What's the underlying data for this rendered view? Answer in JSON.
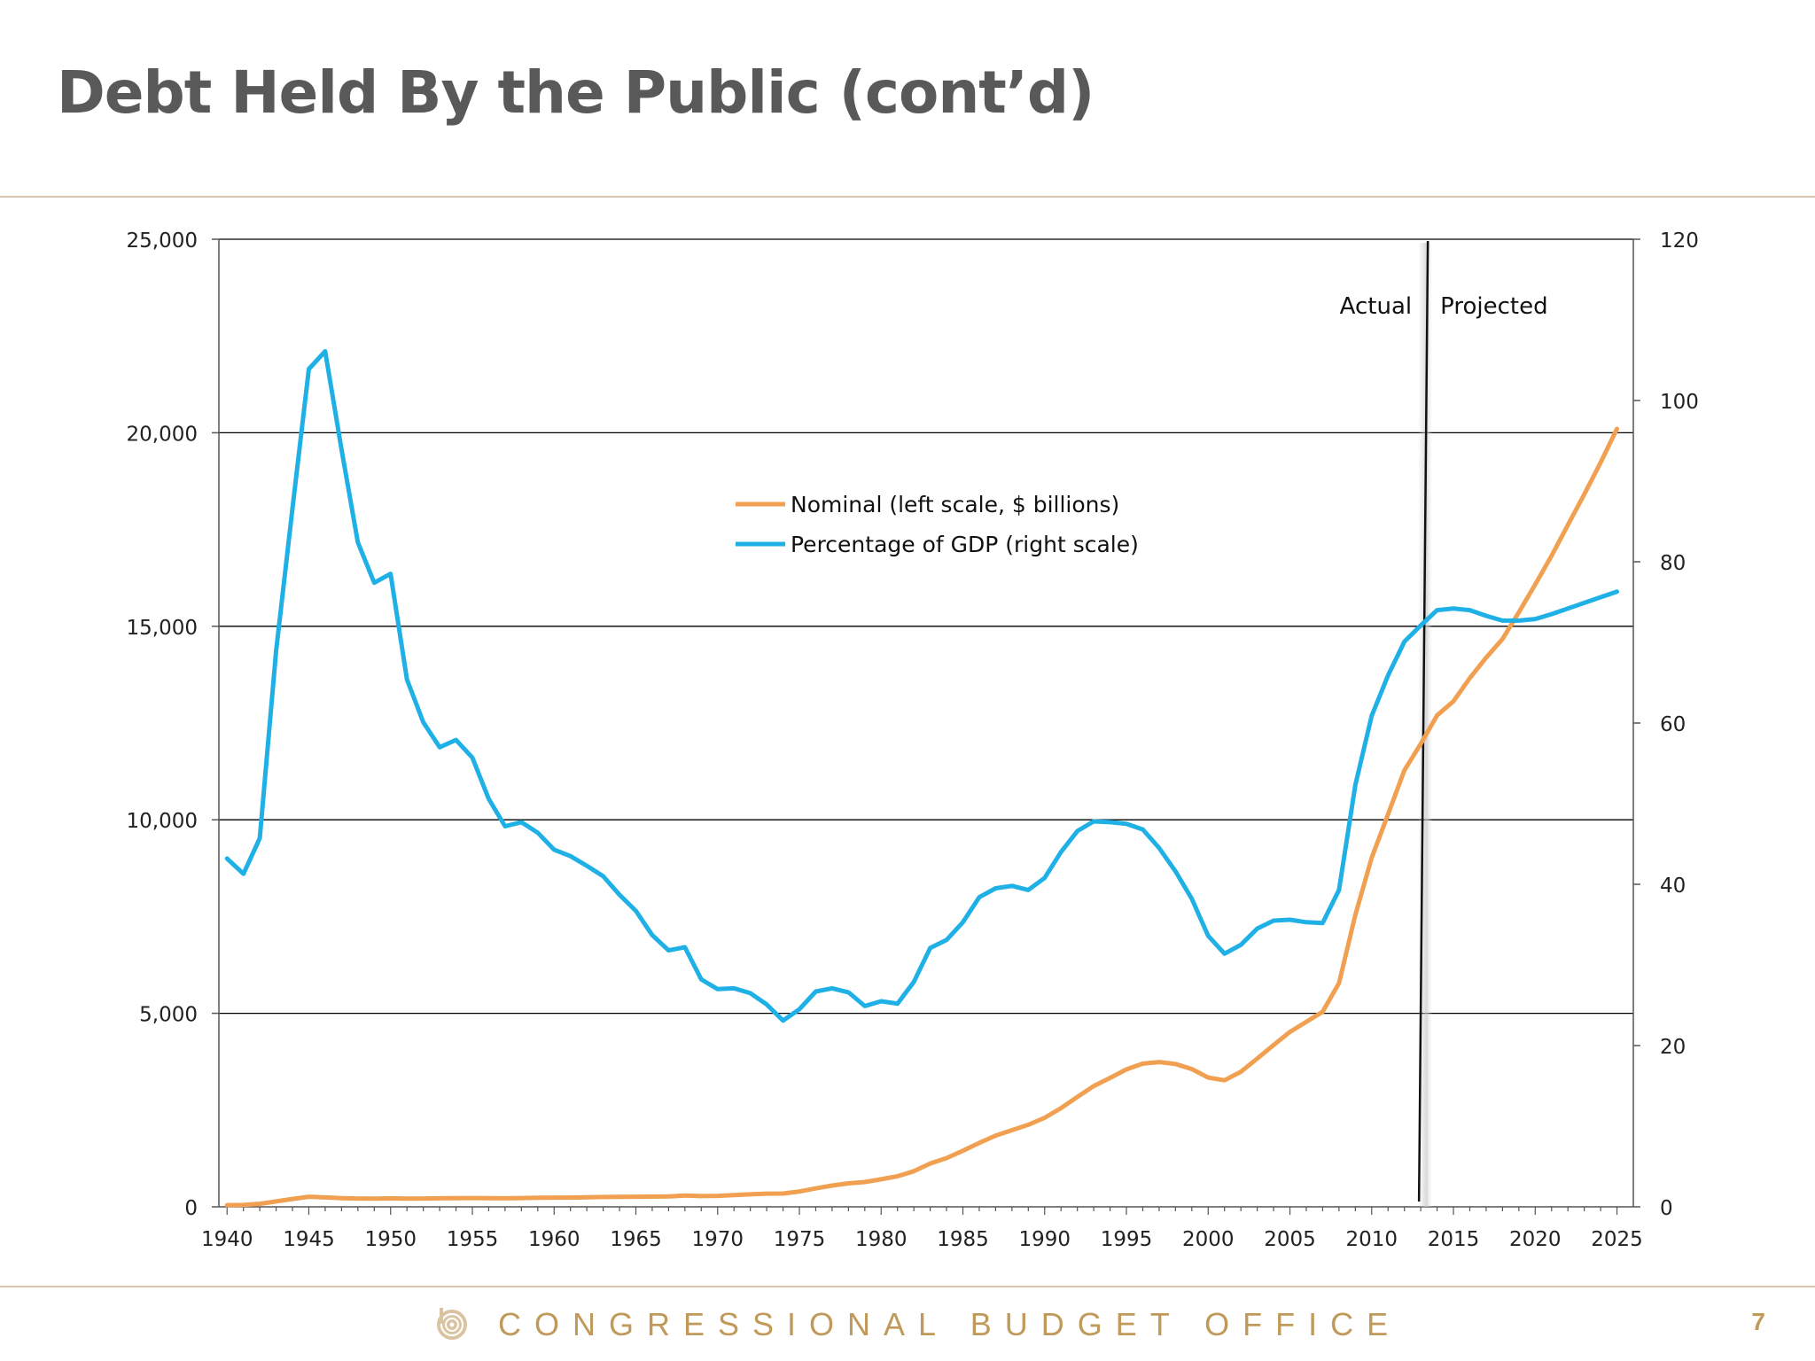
{
  "slide": {
    "title": "Debt Held By the Public (cont’d)",
    "footer_text": "CONGRESSIONAL BUDGET OFFICE",
    "page_number": "7",
    "footer_logo_icon": "cbo-logo-icon"
  },
  "colors": {
    "nominal": "#f0a050",
    "percent": "#1fb0e6",
    "title": "#595959",
    "footer": "#c09a5b",
    "rule": "#d8c7ad"
  },
  "chart_data": {
    "type": "line",
    "title": "",
    "xlabel": "",
    "ylabel": "",
    "xlim": [
      1939.5,
      2026
    ],
    "x_ticks": [
      1940,
      1945,
      1950,
      1955,
      1960,
      1965,
      1970,
      1975,
      1980,
      1985,
      1990,
      1995,
      2000,
      2005,
      2010,
      2015,
      2020,
      2025
    ],
    "x_tick_labels": [
      "1940",
      "1945",
      "1950",
      "1955",
      "1960",
      "1965",
      "1970",
      "1975",
      "1980",
      "1985",
      "1990",
      "1995",
      "2000",
      "2005",
      "2010",
      "2015",
      "2020",
      "2025"
    ],
    "left_axis": {
      "ylim": [
        0,
        25000
      ],
      "ticks": [
        0,
        5000,
        10000,
        15000,
        20000,
        25000
      ],
      "tick_labels": [
        "0",
        "5,000",
        "10,000",
        "15,000",
        "20,000",
        "25,000"
      ]
    },
    "right_axis": {
      "ylim": [
        0,
        120
      ],
      "ticks": [
        0,
        20,
        40,
        60,
        80,
        100,
        120
      ],
      "tick_labels": [
        "0",
        "20",
        "40",
        "60",
        "80",
        "100",
        "120"
      ]
    },
    "grid": "horizontal",
    "legend": {
      "placement": "upper-center",
      "entries": [
        "Nominal (left scale, $ billions)",
        "Percentage of GDP (right scale)"
      ]
    },
    "divider": {
      "year": 2013,
      "left_label": "Actual",
      "right_label": "Projected"
    },
    "series": [
      {
        "name": "Nominal (left scale, $ billions)",
        "axis": "left",
        "x": [
          1940,
          1941,
          1942,
          1943,
          1944,
          1945,
          1946,
          1947,
          1948,
          1949,
          1950,
          1951,
          1952,
          1953,
          1954,
          1955,
          1956,
          1957,
          1958,
          1959,
          1960,
          1961,
          1962,
          1963,
          1964,
          1965,
          1966,
          1967,
          1968,
          1969,
          1970,
          1971,
          1972,
          1973,
          1974,
          1975,
          1976,
          1977,
          1978,
          1979,
          1980,
          1981,
          1982,
          1983,
          1984,
          1985,
          1986,
          1987,
          1988,
          1989,
          1990,
          1991,
          1992,
          1993,
          1994,
          1995,
          1996,
          1997,
          1998,
          1999,
          2000,
          2001,
          2002,
          2003,
          2004,
          2005,
          2006,
          2007,
          2008,
          2009,
          2010,
          2011,
          2012,
          2013,
          2014,
          2015,
          2016,
          2017,
          2018,
          2019,
          2020,
          2021,
          2022,
          2023,
          2024,
          2025
        ],
        "values": [
          43,
          49,
          77,
          139,
          204,
          260,
          242,
          224,
          216,
          214,
          219,
          214,
          215,
          219,
          224,
          227,
          222,
          219,
          226,
          235,
          237,
          238,
          248,
          254,
          257,
          261,
          264,
          267,
          290,
          278,
          283,
          303,
          322,
          341,
          344,
          395,
          477,
          549,
          607,
          640,
          712,
          790,
          920,
          1120,
          1260,
          1450,
          1650,
          1840,
          1980,
          2120,
          2300,
          2550,
          2840,
          3120,
          3330,
          3550,
          3700,
          3740,
          3690,
          3560,
          3340,
          3270,
          3490,
          3830,
          4180,
          4520,
          4780,
          5040,
          5780,
          7540,
          9020,
          10140,
          11280,
          11960,
          12700,
          13060,
          13660,
          14190,
          14670,
          15360,
          16080,
          16820,
          17620,
          18410,
          19230,
          20100
        ]
      },
      {
        "name": "Percentage of GDP (right scale)",
        "axis": "right",
        "x": [
          1940,
          1941,
          1942,
          1943,
          1944,
          1945,
          1946,
          1947,
          1948,
          1949,
          1950,
          1951,
          1952,
          1953,
          1954,
          1955,
          1956,
          1957,
          1958,
          1959,
          1960,
          1961,
          1962,
          1963,
          1964,
          1965,
          1966,
          1967,
          1968,
          1969,
          1970,
          1971,
          1972,
          1973,
          1974,
          1975,
          1976,
          1977,
          1978,
          1979,
          1980,
          1981,
          1982,
          1983,
          1984,
          1985,
          1986,
          1987,
          1988,
          1989,
          1990,
          1991,
          1992,
          1993,
          1994,
          1995,
          1996,
          1997,
          1998,
          1999,
          2000,
          2001,
          2002,
          2003,
          2004,
          2005,
          2006,
          2007,
          2008,
          2009,
          2010,
          2011,
          2012,
          2013,
          2014,
          2015,
          2016,
          2017,
          2018,
          2019,
          2020,
          2021,
          2022,
          2023,
          2024,
          2025
        ],
        "values": [
          43.2,
          41.3,
          45.7,
          69.0,
          86.6,
          103.9,
          106.1,
          93.9,
          82.4,
          77.4,
          78.5,
          65.4,
          60.1,
          57.0,
          57.9,
          55.7,
          50.6,
          47.2,
          47.7,
          46.4,
          44.3,
          43.5,
          42.3,
          41.0,
          38.7,
          36.7,
          33.7,
          31.8,
          32.2,
          28.2,
          27.0,
          27.1,
          26.5,
          25.1,
          23.1,
          24.5,
          26.7,
          27.1,
          26.6,
          24.9,
          25.5,
          25.2,
          27.9,
          32.1,
          33.1,
          35.3,
          38.4,
          39.5,
          39.8,
          39.3,
          40.8,
          44.0,
          46.6,
          47.8,
          47.7,
          47.5,
          46.8,
          44.5,
          41.6,
          38.2,
          33.6,
          31.4,
          32.5,
          34.5,
          35.5,
          35.6,
          35.3,
          35.2,
          39.3,
          52.3,
          60.9,
          65.9,
          70.1,
          72.1,
          74.0,
          74.2,
          74.0,
          73.3,
          72.7,
          72.7,
          72.9,
          73.5,
          74.2,
          74.9,
          75.6,
          76.3
        ]
      }
    ]
  }
}
